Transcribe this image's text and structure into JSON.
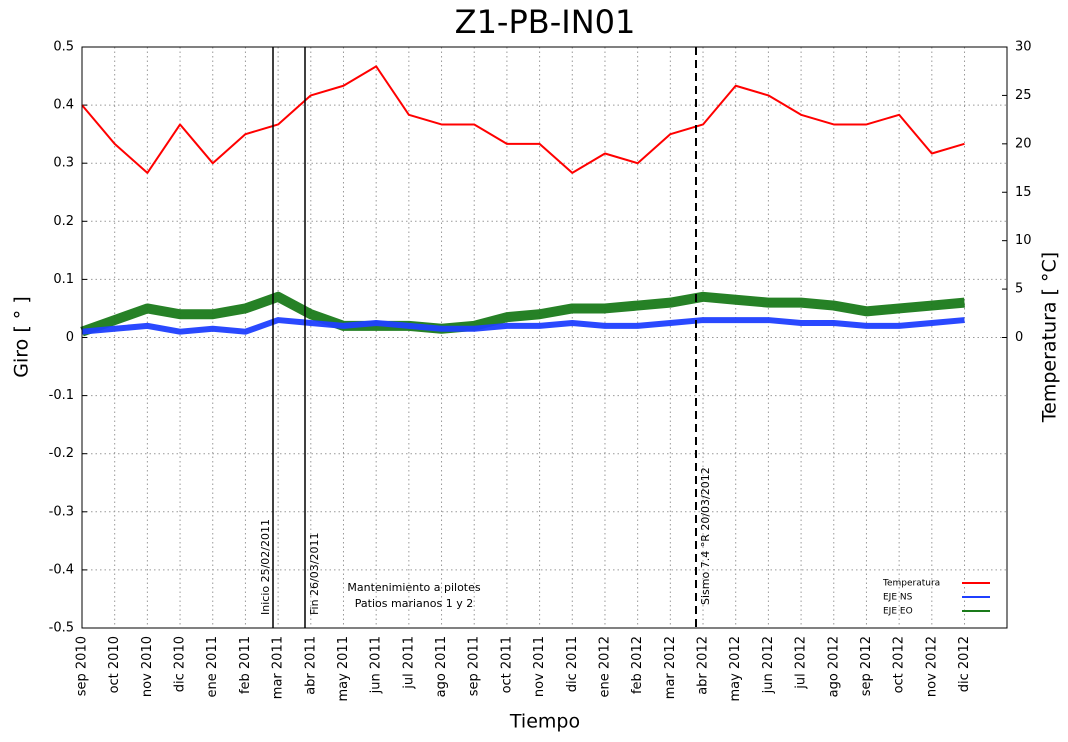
{
  "chart_data": {
    "type": "line",
    "title": "Z1-PB-IN01",
    "x_label": "Tiempo",
    "y_label": "Giro  [ ° ]",
    "y2_label": "Temperatura [ °C]",
    "categories": [
      "sep 2010",
      "oct 2010",
      "nov 2010",
      "dic 2010",
      "ene 2011",
      "feb 2011",
      "mar 2011",
      "abr 2011",
      "may 2011",
      "jun 2011",
      "jul 2011",
      "ago 2011",
      "sep 2011",
      "oct 2011",
      "nov 2011",
      "dic 2011",
      "ene 2012",
      "feb 2012",
      "mar 2012",
      "abr 2012",
      "may 2012",
      "jun 2012",
      "jul 2012",
      "ago 2012",
      "sep 2012",
      "oct 2012",
      "nov 2012",
      "dic 2012"
    ],
    "series": [
      {
        "name": "Temperatura",
        "color": "#ff0000",
        "axis": "y2",
        "values": [
          24,
          20,
          17,
          22,
          18,
          21,
          22,
          25,
          26,
          28,
          23,
          22,
          22,
          20,
          20,
          17,
          19,
          18,
          21,
          22,
          26,
          25,
          23,
          22,
          22,
          23,
          19,
          20
        ]
      },
      {
        "name": "EJE NS",
        "color": "#1f3fff",
        "values": [
          0.01,
          0.015,
          0.02,
          0.01,
          0.015,
          0.01,
          0.03,
          0.025,
          0.02,
          0.025,
          0.02,
          0.015,
          0.015,
          0.02,
          0.02,
          0.025,
          0.02,
          0.02,
          0.025,
          0.03,
          0.03,
          0.03,
          0.025,
          0.025,
          0.02,
          0.02,
          0.025,
          0.03
        ]
      },
      {
        "name": "EJE EO",
        "color": "#1a7a1a",
        "values": [
          0.01,
          0.03,
          0.05,
          0.04,
          0.04,
          0.05,
          0.07,
          0.04,
          0.02,
          0.02,
          0.02,
          0.015,
          0.02,
          0.035,
          0.04,
          0.05,
          0.05,
          0.055,
          0.06,
          0.07,
          0.065,
          0.06,
          0.06,
          0.055,
          0.045,
          0.05,
          0.055,
          0.06
        ]
      }
    ],
    "ylim": [
      -0.5,
      0.5
    ],
    "yticks": [
      -0.5,
      -0.4,
      -0.3,
      -0.2,
      -0.1,
      0,
      0.1,
      0.2,
      0.3,
      0.4,
      0.5
    ],
    "y2lim": [
      -30,
      30
    ],
    "y2ticks": [
      0,
      5,
      10,
      15,
      20,
      25,
      30
    ],
    "grid": true,
    "legend": "lower right",
    "annotations": {
      "inicio": "Inicio  25/02/2011",
      "fin": "Fin  26/03/2011",
      "sismo": "Sismo 7.4 °R 20/03/2012",
      "mantenimiento": [
        "Mantenimiento a pilotes",
        "Patios marianos 1 y 2"
      ]
    }
  }
}
